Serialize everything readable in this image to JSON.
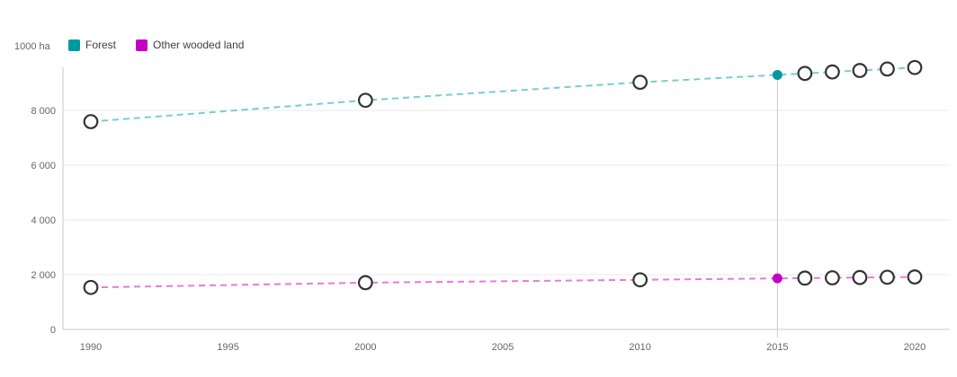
{
  "chart_data": {
    "type": "line",
    "title": "",
    "xlabel": "",
    "ylabel": "1000 ha",
    "unit_label": "1000 ha",
    "ylim": [
      0,
      10000
    ],
    "yticks": [
      0,
      2000,
      4000,
      6000,
      8000
    ],
    "ytick_labels": [
      "0",
      "2 000",
      "4 000",
      "6 000",
      "8 000"
    ],
    "xticks": [
      1990,
      1995,
      2000,
      2005,
      2010,
      2015,
      2020
    ],
    "grid": true,
    "legend_position": "top-left",
    "reference_year": 2015,
    "x": [
      1990,
      2000,
      2010,
      2015,
      2016,
      2017,
      2018,
      2019,
      2020
    ],
    "series": [
      {
        "name": "Forest",
        "color": "#0099a1",
        "line_color": "#79ccd2",
        "values": [
          7590,
          8369,
          9028,
          9297,
          9351,
          9405,
          9458,
          9512,
          9566
        ]
      },
      {
        "name": "Other wooded land",
        "color": "#c400c4",
        "line_color": "#e679de",
        "values": [
          1533,
          1708,
          1812,
          1864,
          1875,
          1885,
          1896,
          1906,
          1917
        ]
      }
    ],
    "marker": {
      "open_fill": "#ffffff",
      "open_stroke": "#333333",
      "filled_year": 2015
    },
    "colors": {
      "axis_line": "#c9c9c9",
      "gridline": "#e9e9e9",
      "tick_text": "#666666",
      "legend_text": "#404040"
    }
  }
}
